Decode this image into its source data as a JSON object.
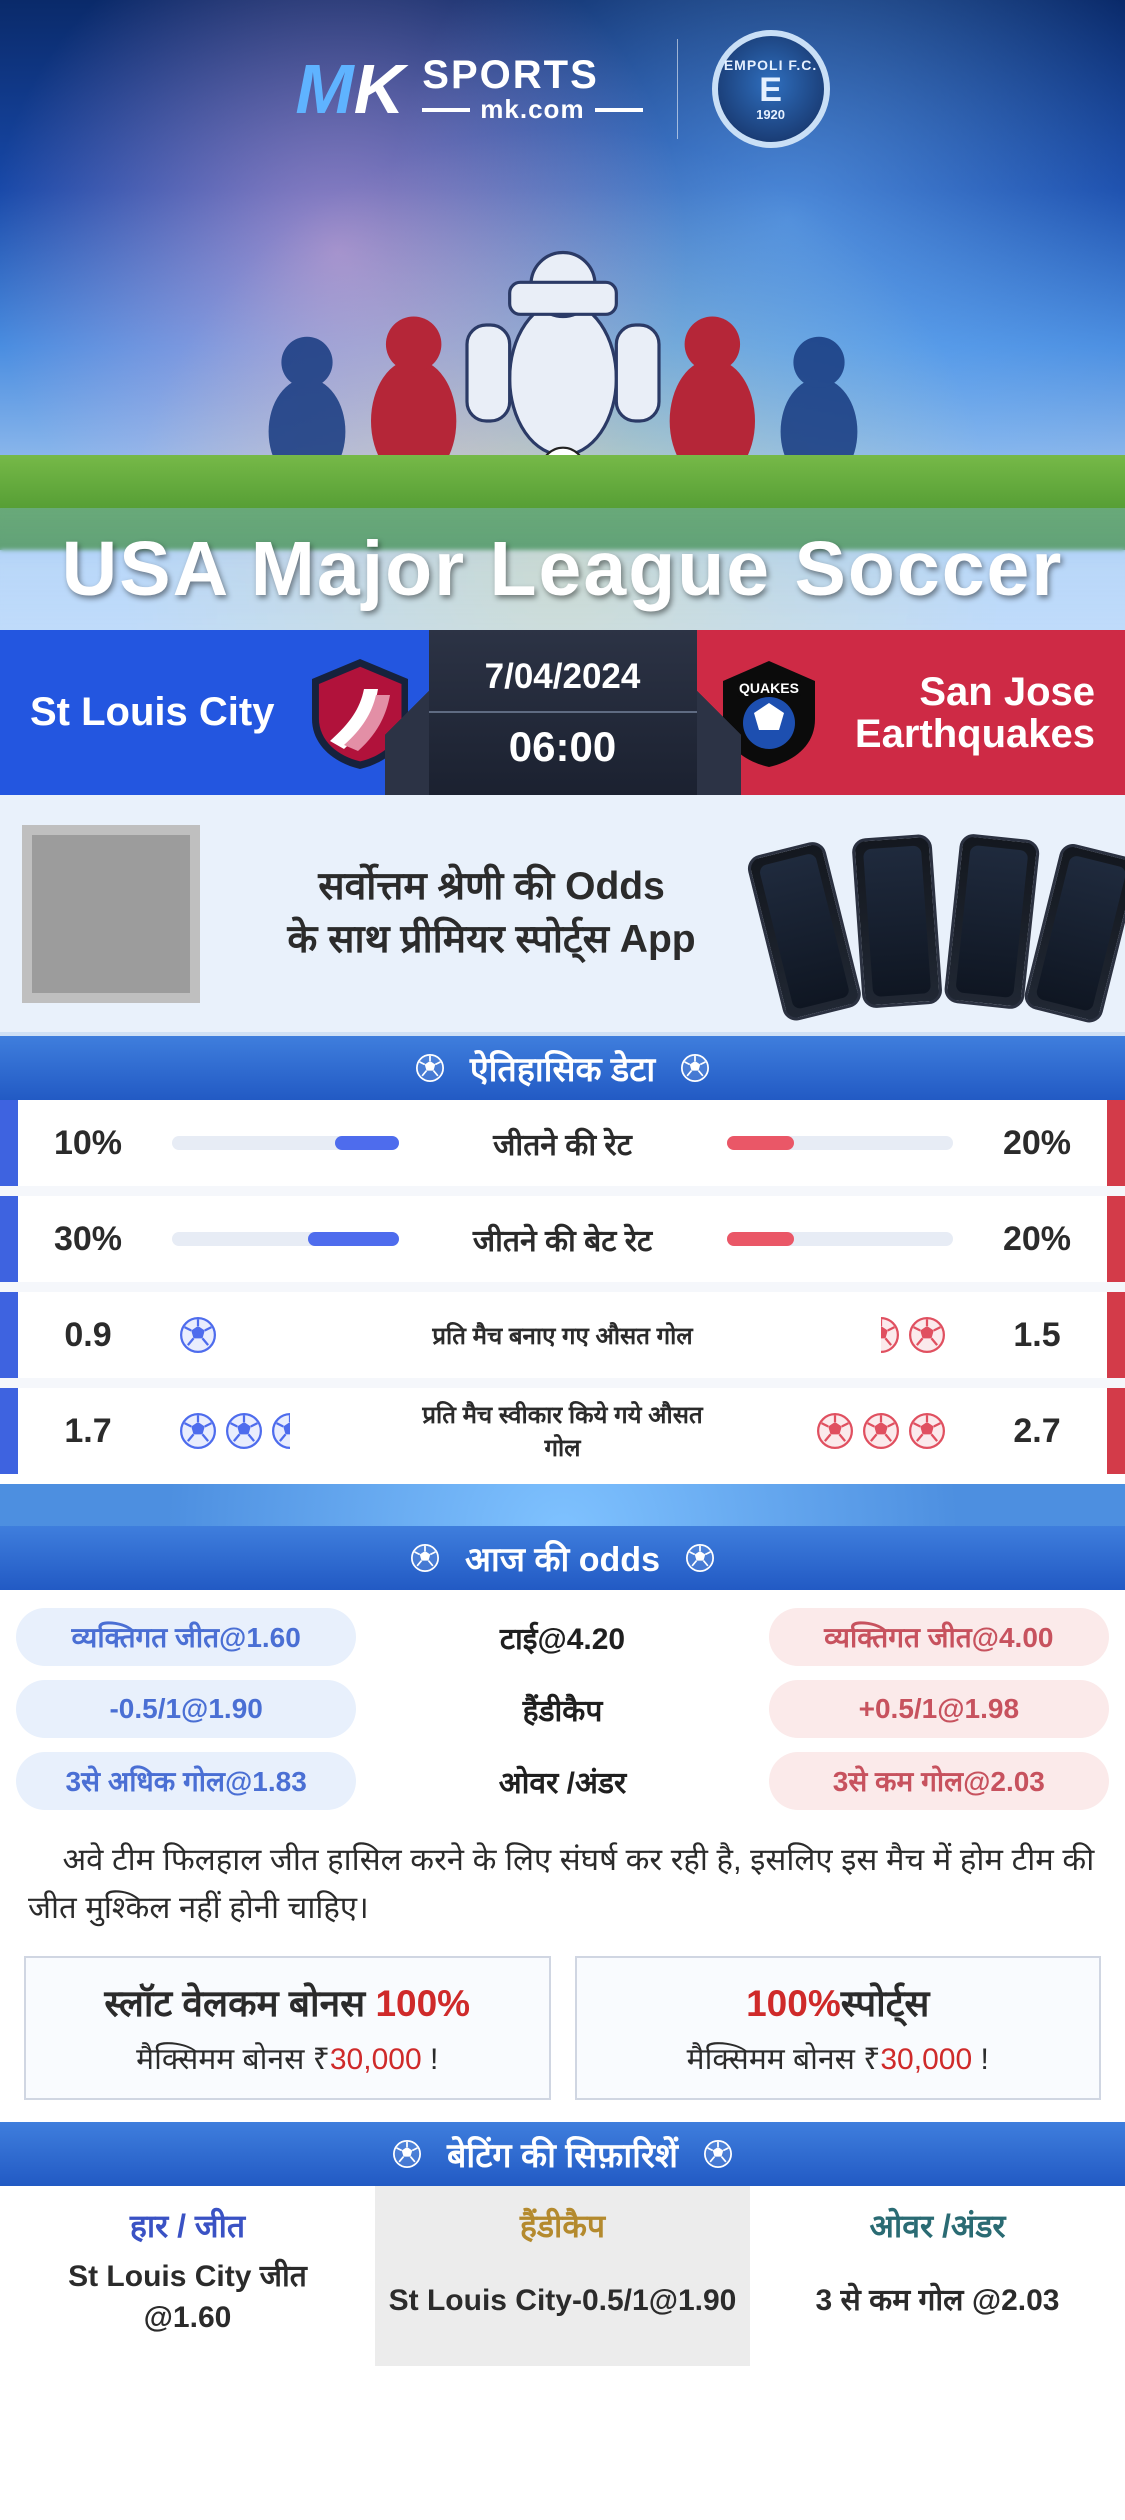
{
  "brand": {
    "mk_prefix": "M",
    "mk_suffix": "K",
    "line1": "SPORTS",
    "line2": "mk.com",
    "club_top": "EMPOLI F.C.",
    "club_mid": "E",
    "club_year": "1920"
  },
  "hero": {
    "league": "USA Major League Soccer"
  },
  "match": {
    "home": "St Louis City",
    "away_line1": "San Jose",
    "away_line2": "Earthquakes",
    "date": "7/04/2024",
    "time": "06:00"
  },
  "promo": {
    "line1": "सर्वोत्तम श्रेणी की Odds",
    "line2": "के साथ प्रीमियर स्पोर्ट्स App"
  },
  "sections": {
    "historical": "ऐतिहासिक डेटा",
    "odds": "आज की odds",
    "recs": "बेटिंग की सिफ़ारिशें"
  },
  "hist": {
    "rows": [
      {
        "lv": "10%",
        "lb": "जीतने की रेट",
        "rv": "20%",
        "lfill": 28,
        "rfill": 30,
        "type": "bar"
      },
      {
        "lv": "30%",
        "lb": "जीतने की बेट रेट",
        "rv": "20%",
        "lfill": 40,
        "rfill": 30,
        "type": "bar"
      },
      {
        "lv": "0.9",
        "lb": "प्रति मैच बनाए गए औसत गोल",
        "rv": "1.5",
        "type": "icons",
        "licons": 1,
        "ricons": 2,
        "rhalf": true
      },
      {
        "lv": "1.7",
        "lb": "प्रति मैच स्वीकार किये गये औसत गोल",
        "rv": "2.7",
        "type": "icons",
        "licons": 2,
        "ricons": 3,
        "rhalf": false,
        "lhalf": true
      }
    ]
  },
  "odds": {
    "r1": {
      "l": "व्यक्तिगत जीत@1.60",
      "m": "टाई@4.20",
      "r": "व्यक्तिगत जीत@4.00"
    },
    "r2": {
      "l": "-0.5/1@1.90",
      "m": "हैंडीकैप",
      "r": "+0.5/1@1.98"
    },
    "r3": {
      "l": "3से अधिक गोल@1.83",
      "m": "ओवर /अंडर",
      "r": "3से कम गोल@2.03"
    }
  },
  "note": "अवे टीम फिलहाल जीत हासिल करने के लिए संघर्ष कर रही है, इसलिए इस मैच में होम टीम की जीत मुश्किल नहीं होनी चाहिए।",
  "bonus": {
    "left": {
      "h_pre": "स्लॉट वेलकम बोनस ",
      "h_em": "100%",
      "s_pre": "मैक्सिमम बोनस ₹",
      "s_em": "30,000",
      "s_post": "  !"
    },
    "right": {
      "h_em": "100%",
      "h_post": "स्पोर्ट्स",
      "s_pre": "मैक्सिमम बोनस  ₹",
      "s_em": "30,000",
      "s_post": " !"
    }
  },
  "recs": {
    "c1": {
      "t": "हार / जीत",
      "v1": "St Louis City जीत",
      "v2": "@1.60"
    },
    "c2": {
      "t": "हैंडीकैप",
      "v1": "St Louis City-0.5/1@1.90"
    },
    "c3": {
      "t": "ओवर /अंडर",
      "v1": "3 से कम गोल @2.03"
    }
  },
  "colors": {
    "blue": "#2356e0",
    "red": "#ce2a45",
    "barBlue": "#4e6ced",
    "barRed": "#ea5767",
    "chipBlueBg": "#e8f0fc",
    "chipRedBg": "#fbeaea",
    "accentRed": "#cf2a2a"
  }
}
